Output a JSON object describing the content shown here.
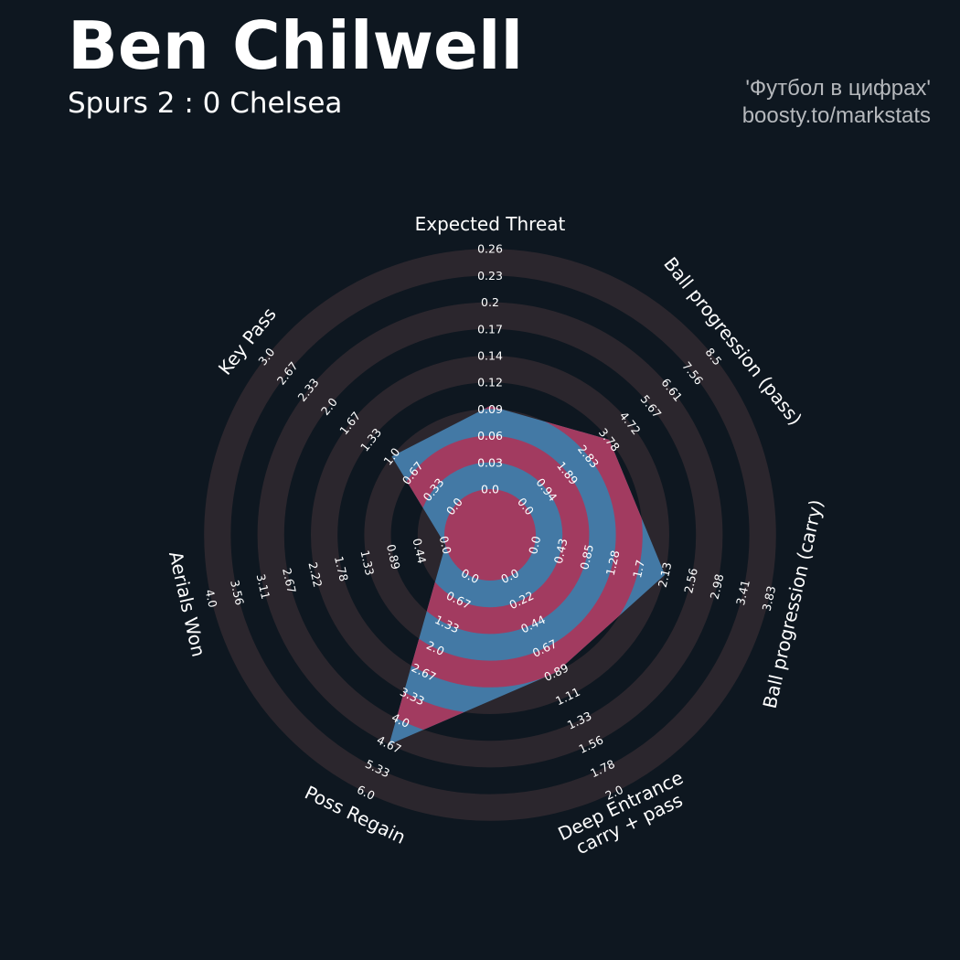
{
  "header": {
    "player_name": "Ben Chilwell",
    "match": "Spurs 2 : 0 Chelsea",
    "credit_line1": "'Футбол в цифрах'",
    "credit_line2": "boosty.to/markstats"
  },
  "colors": {
    "background": "#0e1720",
    "rings": "#2b262d",
    "player_fill": "#4379a5",
    "player_band": "#a23b60"
  },
  "chart_data": {
    "type": "radar",
    "parameters": [
      {
        "label": "Expected Threat",
        "ticks": [
          "0.0",
          "0.03",
          "0.06",
          "0.09",
          "0.12",
          "0.14",
          "0.17",
          "0.2",
          "0.23",
          "0.26"
        ],
        "min": 0.0,
        "max": 0.26
      },
      {
        "label": "Ball progression (pass)",
        "ticks": [
          "0.0",
          "0.94",
          "1.89",
          "2.83",
          "3.78",
          "4.72",
          "5.67",
          "6.61",
          "7.56",
          "8.5"
        ],
        "min": 0.0,
        "max": 8.5
      },
      {
        "label": "Ball progression (carry)",
        "ticks": [
          "0.0",
          "0.43",
          "0.85",
          "1.28",
          "1.7",
          "2.13",
          "2.56",
          "2.98",
          "3.41",
          "3.83"
        ],
        "min": 0.0,
        "max": 3.83
      },
      {
        "label": "Deep Entrance\ncarry + pass",
        "ticks": [
          "0.0",
          "0.22",
          "0.44",
          "0.67",
          "0.89",
          "1.11",
          "1.33",
          "1.56",
          "1.78",
          "2.0"
        ],
        "min": 0.0,
        "max": 2.0
      },
      {
        "label": "Poss Regain",
        "ticks": [
          "0.0",
          "0.67",
          "1.33",
          "2.0",
          "2.67",
          "3.33",
          "4.0",
          "4.67",
          "5.33",
          "6.0"
        ],
        "min": 0.0,
        "max": 6.0
      },
      {
        "label": "Aerials Won",
        "ticks": [
          "0.0",
          "0.44",
          "0.89",
          "1.33",
          "1.78",
          "2.22",
          "2.67",
          "3.11",
          "3.56",
          "4.0"
        ],
        "min": 0.0,
        "max": 4.0
      },
      {
        "label": "Key Pass",
        "ticks": [
          "0.0",
          "0.33",
          "0.67",
          "1.0",
          "1.33",
          "1.67",
          "2.0",
          "2.33",
          "2.67",
          "3.0"
        ],
        "min": 0.0,
        "max": 3.0
      }
    ],
    "values": [
      0.09,
      3.78,
      2.13,
      0.89,
      4.67,
      0.0,
      1.0
    ]
  }
}
